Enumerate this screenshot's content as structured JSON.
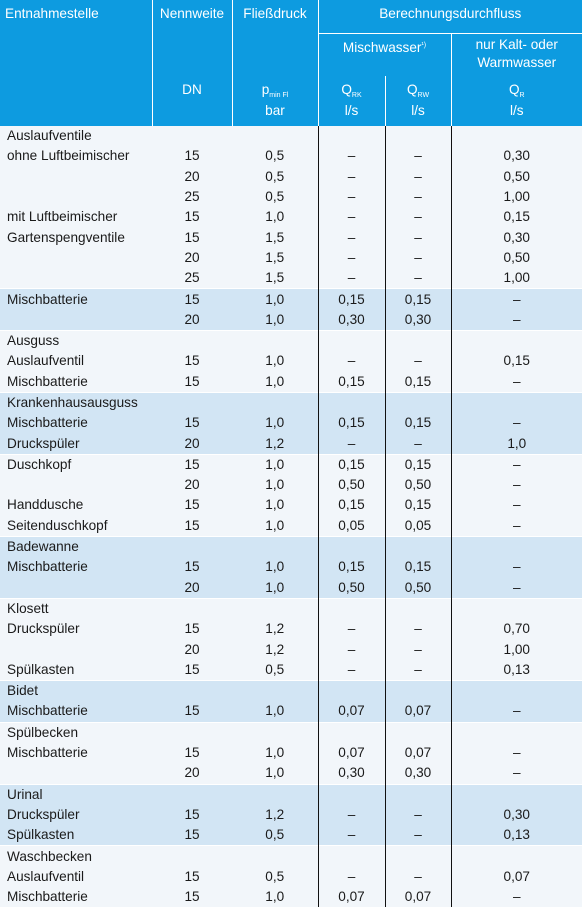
{
  "header": {
    "entnahmestelle": "Entnahmestelle",
    "nennweite": "Nennweite",
    "fliessdruck": "Fließdruck",
    "berechnungsdurchfluss": "Berechnungsdurchfluss",
    "mischwasser": "Mischwasser",
    "mischwasser_note": "¹)",
    "kalt_warm_line1": "nur Kalt- oder",
    "kalt_warm_line2": "Warmwasser",
    "dn": "DN",
    "p_main": "p",
    "p_sub": "min Fl",
    "p_unit": "bar",
    "qrk_main": "Q",
    "qrk_sub": "RK",
    "qrk_unit": "l/s",
    "qrw_main": "Q",
    "qrw_sub": "RW",
    "qrw_unit": "l/s",
    "qr_main": "Q",
    "qr_sub": "R",
    "qr_unit": "l/s"
  },
  "rows": [
    {
      "label": "Auslaufventile",
      "dn": "",
      "p": "",
      "qrk": "",
      "qrw": "",
      "qr": "",
      "shade": "g",
      "sep": false
    },
    {
      "label": "ohne Luftbeimischer",
      "dn": "15",
      "p": "0,5",
      "qrk": "–",
      "qrw": "–",
      "qr": "0,30",
      "shade": "g",
      "sep": false
    },
    {
      "label": "",
      "dn": "20",
      "p": "0,5",
      "qrk": "–",
      "qrw": "–",
      "qr": "0,50",
      "shade": "g",
      "sep": false
    },
    {
      "label": "",
      "dn": "25",
      "p": "0,5",
      "qrk": "–",
      "qrw": "–",
      "qr": "1,00",
      "shade": "g",
      "sep": false
    },
    {
      "label": "mit Luftbeimischer",
      "dn": "15",
      "p": "1,0",
      "qrk": "–",
      "qrw": "–",
      "qr": "0,15",
      "shade": "g",
      "sep": false
    },
    {
      "label": "Gartenspengventile",
      "dn": "15",
      "p": "1,5",
      "qrk": "–",
      "qrw": "–",
      "qr": "0,30",
      "shade": "g",
      "sep": false
    },
    {
      "label": "",
      "dn": "20",
      "p": "1,5",
      "qrk": "–",
      "qrw": "–",
      "qr": "0,50",
      "shade": "g",
      "sep": false
    },
    {
      "label": "",
      "dn": "25",
      "p": "1,5",
      "qrk": "–",
      "qrw": "–",
      "qr": "1,00",
      "shade": "g",
      "sep": false
    },
    {
      "label": "Mischbatterie",
      "dn": "15",
      "p": "1,0",
      "qrk": "0,15",
      "qrw": "0,15",
      "qr": "–",
      "shade": "b",
      "sep": true
    },
    {
      "label": "",
      "dn": "20",
      "p": "1,0",
      "qrk": "0,30",
      "qrw": "0,30",
      "qr": "–",
      "shade": "b",
      "sep": false
    },
    {
      "label": "Ausguss",
      "dn": "",
      "p": "",
      "qrk": "",
      "qrw": "",
      "qr": "",
      "shade": "g",
      "sep": true
    },
    {
      "label": "Auslaufventil",
      "dn": "15",
      "p": "1,0",
      "qrk": "–",
      "qrw": "–",
      "qr": "0,15",
      "shade": "g",
      "sep": false
    },
    {
      "label": "Mischbatterie",
      "dn": "15",
      "p": "1,0",
      "qrk": "0,15",
      "qrw": "0,15",
      "qr": "–",
      "shade": "g",
      "sep": false
    },
    {
      "label": "Krankenhausausguss",
      "dn": "",
      "p": "",
      "qrk": "",
      "qrw": "",
      "qr": "",
      "shade": "b",
      "sep": true
    },
    {
      "label": "Mischbatterie",
      "dn": "15",
      "p": "1,0",
      "qrk": "0,15",
      "qrw": "0,15",
      "qr": "–",
      "shade": "b",
      "sep": false
    },
    {
      "label": "Druckspüler",
      "dn": "20",
      "p": "1,2",
      "qrk": "–",
      "qrw": "–",
      "qr": "1,0",
      "shade": "b",
      "sep": false
    },
    {
      "label": "Duschkopf",
      "dn": "15",
      "p": "1,0",
      "qrk": "0,15",
      "qrw": "0,15",
      "qr": "–",
      "shade": "g",
      "sep": true
    },
    {
      "label": "",
      "dn": "20",
      "p": "1,0",
      "qrk": "0,50",
      "qrw": "0,50",
      "qr": "–",
      "shade": "g",
      "sep": false
    },
    {
      "label": "Handdusche",
      "dn": "15",
      "p": "1,0",
      "qrk": "0,15",
      "qrw": "0,15",
      "qr": "–",
      "shade": "g",
      "sep": false
    },
    {
      "label": "Seitenduschkopf",
      "dn": "15",
      "p": "1,0",
      "qrk": "0,05",
      "qrw": "0,05",
      "qr": "–",
      "shade": "g",
      "sep": false
    },
    {
      "label": "Badewanne",
      "dn": "",
      "p": "",
      "qrk": "",
      "qrw": "",
      "qr": "",
      "shade": "b",
      "sep": true
    },
    {
      "label": "Mischbatterie",
      "dn": "15",
      "p": "1,0",
      "qrk": "0,15",
      "qrw": "0,15",
      "qr": "–",
      "shade": "b",
      "sep": false
    },
    {
      "label": "",
      "dn": "20",
      "p": "1,0",
      "qrk": "0,50",
      "qrw": "0,50",
      "qr": "–",
      "shade": "b",
      "sep": false
    },
    {
      "label": "Klosett",
      "dn": "",
      "p": "",
      "qrk": "",
      "qrw": "",
      "qr": "",
      "shade": "g",
      "sep": true
    },
    {
      "label": "Druckspüler",
      "dn": "15",
      "p": "1,2",
      "qrk": "–",
      "qrw": "–",
      "qr": "0,70",
      "shade": "g",
      "sep": false
    },
    {
      "label": "",
      "dn": "20",
      "p": "1,2",
      "qrk": "–",
      "qrw": "–",
      "qr": "1,00",
      "shade": "g",
      "sep": false
    },
    {
      "label": "Spülkasten",
      "dn": "15",
      "p": "0,5",
      "qrk": "–",
      "qrw": "–",
      "qr": "0,13",
      "shade": "g",
      "sep": false
    },
    {
      "label": "Bidet",
      "dn": "",
      "p": "",
      "qrk": "",
      "qrw": "",
      "qr": "",
      "shade": "b",
      "sep": true
    },
    {
      "label": "Mischbatterie",
      "dn": "15",
      "p": "1,0",
      "qrk": "0,07",
      "qrw": "0,07",
      "qr": "–",
      "shade": "b",
      "sep": false
    },
    {
      "label": "Spülbecken",
      "dn": "",
      "p": "",
      "qrk": "",
      "qrw": "",
      "qr": "",
      "shade": "g",
      "sep": true
    },
    {
      "label": "Mischbatterie",
      "dn": "15",
      "p": "1,0",
      "qrk": "0,07",
      "qrw": "0,07",
      "qr": "–",
      "shade": "g",
      "sep": false
    },
    {
      "label": "",
      "dn": "20",
      "p": "1,0",
      "qrk": "0,30",
      "qrw": "0,30",
      "qr": "–",
      "shade": "g",
      "sep": false
    },
    {
      "label": "Urinal",
      "dn": "",
      "p": "",
      "qrk": "",
      "qrw": "",
      "qr": "",
      "shade": "b",
      "sep": true
    },
    {
      "label": "Druckspüler",
      "dn": "15",
      "p": "1,2",
      "qrk": "–",
      "qrw": "–",
      "qr": "0,30",
      "shade": "b",
      "sep": false
    },
    {
      "label": "Spülkasten",
      "dn": "15",
      "p": "0,5",
      "qrk": "–",
      "qrw": "–",
      "qr": "0,13",
      "shade": "b",
      "sep": false
    },
    {
      "label": "Waschbecken",
      "dn": "",
      "p": "",
      "qrk": "",
      "qrw": "",
      "qr": "",
      "shade": "g",
      "sep": true
    },
    {
      "label": "Auslaufventil",
      "dn": "15",
      "p": "0,5",
      "qrk": "–",
      "qrw": "–",
      "qr": "0,07",
      "shade": "g",
      "sep": false
    },
    {
      "label": "Mischbatterie",
      "dn": "15",
      "p": "1,0",
      "qrk": "0,07",
      "qrw": "0,07",
      "qr": "–",
      "shade": "g",
      "sep": false
    }
  ],
  "colors": {
    "header_bg": "#0d9be0",
    "row_light": "#f2f6fa",
    "row_blue": "#d2e5f4"
  }
}
